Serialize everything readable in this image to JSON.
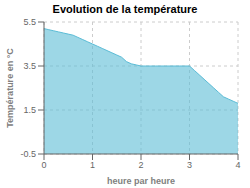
{
  "chart_data": {
    "type": "area",
    "title": "Evolution de la température",
    "x_label": "heure par heure",
    "y_label": "Température en °C",
    "x": [
      0,
      0.1,
      0.2,
      0.3,
      0.4,
      0.5,
      0.6,
      0.7,
      0.8,
      0.9,
      1.0,
      1.1,
      1.2,
      1.3,
      1.4,
      1.5,
      1.6,
      1.7,
      1.8,
      1.9,
      2.0,
      2.1,
      2.2,
      2.3,
      2.4,
      2.5,
      2.6,
      2.7,
      2.8,
      2.9,
      3.0,
      3.1,
      3.2,
      3.3,
      3.4,
      3.5,
      3.6,
      3.7,
      3.8,
      3.9,
      4.0
    ],
    "values": [
      5.2,
      5.15,
      5.1,
      5.05,
      5.0,
      4.95,
      4.9,
      4.8,
      4.7,
      4.6,
      4.5,
      4.4,
      4.3,
      4.2,
      4.1,
      4.0,
      3.9,
      3.7,
      3.6,
      3.55,
      3.5,
      3.5,
      3.5,
      3.5,
      3.5,
      3.5,
      3.5,
      3.5,
      3.5,
      3.5,
      3.5,
      3.3,
      3.1,
      2.9,
      2.7,
      2.5,
      2.3,
      2.1,
      2.0,
      1.9,
      1.8
    ],
    "color": "#5bbcd6",
    "xlim": [
      0,
      4
    ],
    "ylim": [
      -0.5,
      5.5
    ],
    "xticks": [
      0,
      1,
      2,
      3,
      4
    ],
    "yticks": [
      -0.5,
      1.5,
      3.5,
      5.5
    ],
    "grid": true
  }
}
